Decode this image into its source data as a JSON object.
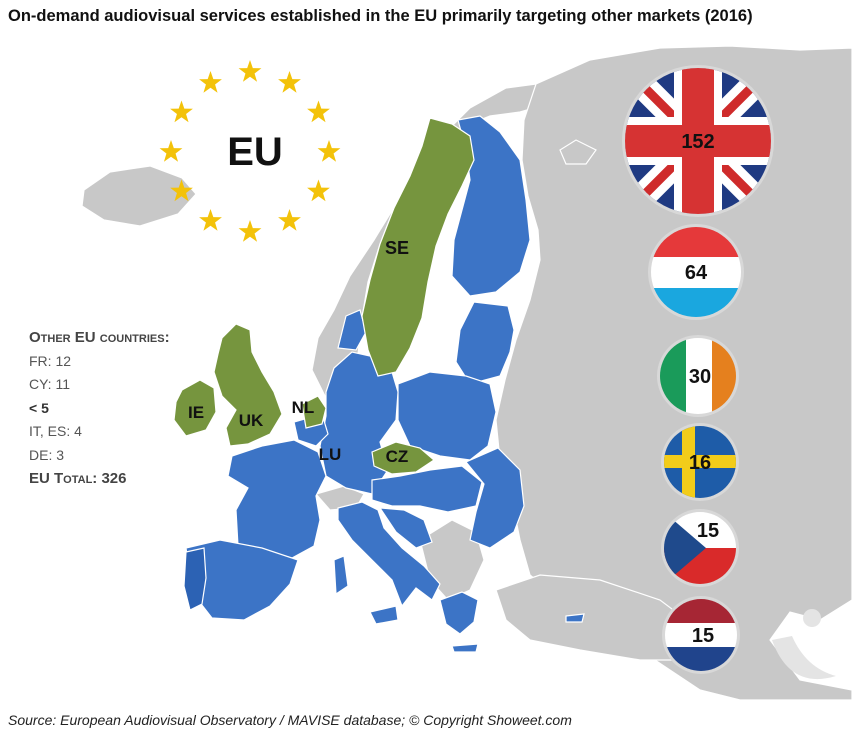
{
  "title": "On-demand audiovisual services established in the EU primarily targeting other markets (2016)",
  "eu_label": "EU",
  "map_labels": {
    "se": "SE",
    "ie": "IE",
    "uk": "UK",
    "nl": "NL",
    "lu": "LU",
    "cz": "CZ"
  },
  "flag_values": {
    "uk": "152",
    "lu": "64",
    "ie": "30",
    "se": "16",
    "cz": "15",
    "nl": "15"
  },
  "other_eu": {
    "header": "Other EU countries:",
    "lines": [
      "FR: 12",
      "CY: 11",
      "< 5",
      "IT, ES: 4",
      "DE: 3",
      "EU Total: 326"
    ]
  },
  "source": "Source: European Audiovisual Observatory / MAVISE database; © Copyright Showeet.com",
  "colors": {
    "background": "#ffffff",
    "non_eu_land": "#c8c8c8",
    "eu_member": "#3c74c6",
    "highlighted_country": "#76953e",
    "star": "#f3c20a"
  }
}
